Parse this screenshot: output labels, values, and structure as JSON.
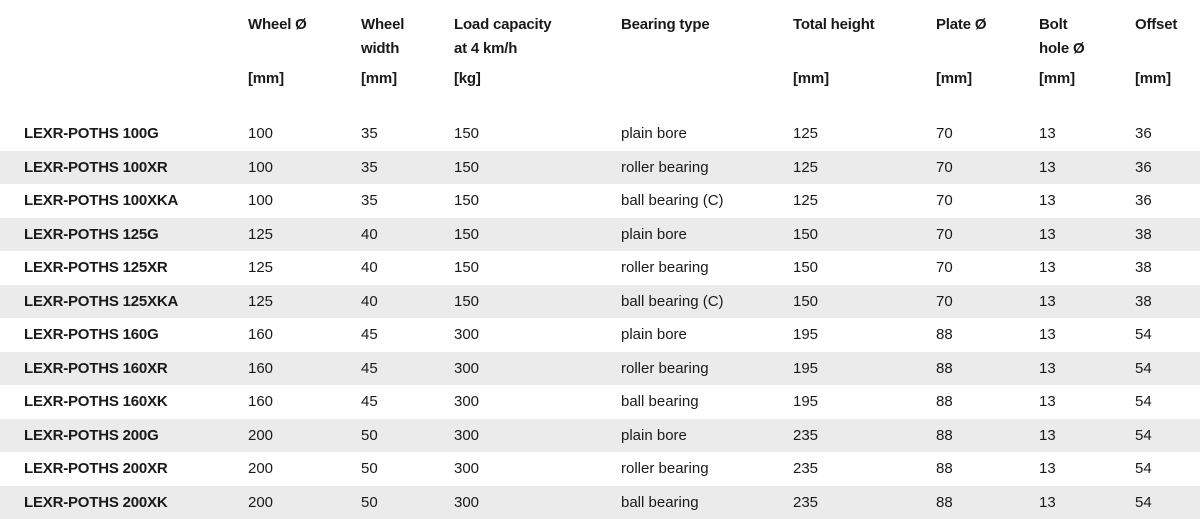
{
  "headers": {
    "wheel_diameter": {
      "line1": "Wheel Ø",
      "line2": "",
      "unit": "[mm]"
    },
    "wheel_width": {
      "line1": "Wheel",
      "line2": "width",
      "unit": "[mm]"
    },
    "load_capacity": {
      "line1": "Load capacity",
      "line2": "at 4 km/h",
      "unit": "[kg]"
    },
    "bearing_type": {
      "line1": "Bearing type",
      "line2": "",
      "unit": ""
    },
    "total_height": {
      "line1": "Total height",
      "line2": "",
      "unit": "[mm]"
    },
    "plate_diameter": {
      "line1": "Plate Ø",
      "line2": "",
      "unit": "[mm]"
    },
    "bolt_hole": {
      "line1": "Bolt",
      "line2": "hole Ø",
      "unit": "[mm]"
    },
    "offset": {
      "line1": "Offset",
      "line2": "",
      "unit": "[mm]"
    }
  },
  "rows": [
    {
      "model": "LEXR-POTHS 100G",
      "wheel_diameter": "100",
      "wheel_width": "35",
      "load_capacity": "150",
      "bearing_type": "plain bore",
      "total_height": "125",
      "plate_diameter": "70",
      "bolt_hole": "13",
      "offset": "36"
    },
    {
      "model": "LEXR-POTHS 100XR",
      "wheel_diameter": "100",
      "wheel_width": "35",
      "load_capacity": "150",
      "bearing_type": "roller bearing",
      "total_height": "125",
      "plate_diameter": "70",
      "bolt_hole": "13",
      "offset": "36"
    },
    {
      "model": "LEXR-POTHS 100XKA",
      "wheel_diameter": "100",
      "wheel_width": "35",
      "load_capacity": "150",
      "bearing_type": "ball bearing (C)",
      "total_height": "125",
      "plate_diameter": "70",
      "bolt_hole": "13",
      "offset": "36"
    },
    {
      "model": "LEXR-POTHS 125G",
      "wheel_diameter": "125",
      "wheel_width": "40",
      "load_capacity": "150",
      "bearing_type": "plain bore",
      "total_height": "150",
      "plate_diameter": "70",
      "bolt_hole": "13",
      "offset": "38"
    },
    {
      "model": "LEXR-POTHS 125XR",
      "wheel_diameter": "125",
      "wheel_width": "40",
      "load_capacity": "150",
      "bearing_type": "roller bearing",
      "total_height": "150",
      "plate_diameter": "70",
      "bolt_hole": "13",
      "offset": "38"
    },
    {
      "model": "LEXR-POTHS 125XKA",
      "wheel_diameter": "125",
      "wheel_width": "40",
      "load_capacity": "150",
      "bearing_type": "ball bearing (C)",
      "total_height": "150",
      "plate_diameter": "70",
      "bolt_hole": "13",
      "offset": "38"
    },
    {
      "model": "LEXR-POTHS 160G",
      "wheel_diameter": "160",
      "wheel_width": "45",
      "load_capacity": "300",
      "bearing_type": "plain bore",
      "total_height": "195",
      "plate_diameter": "88",
      "bolt_hole": "13",
      "offset": "54"
    },
    {
      "model": "LEXR-POTHS 160XR",
      "wheel_diameter": "160",
      "wheel_width": "45",
      "load_capacity": "300",
      "bearing_type": "roller bearing",
      "total_height": "195",
      "plate_diameter": "88",
      "bolt_hole": "13",
      "offset": "54"
    },
    {
      "model": "LEXR-POTHS 160XK",
      "wheel_diameter": "160",
      "wheel_width": "45",
      "load_capacity": "300",
      "bearing_type": "ball bearing",
      "total_height": "195",
      "plate_diameter": "88",
      "bolt_hole": "13",
      "offset": "54"
    },
    {
      "model": "LEXR-POTHS 200G",
      "wheel_diameter": "200",
      "wheel_width": "50",
      "load_capacity": "300",
      "bearing_type": "plain bore",
      "total_height": "235",
      "plate_diameter": "88",
      "bolt_hole": "13",
      "offset": "54"
    },
    {
      "model": "LEXR-POTHS 200XR",
      "wheel_diameter": "200",
      "wheel_width": "50",
      "load_capacity": "300",
      "bearing_type": "roller bearing",
      "total_height": "235",
      "plate_diameter": "88",
      "bolt_hole": "13",
      "offset": "54"
    },
    {
      "model": "LEXR-POTHS 200XK",
      "wheel_diameter": "200",
      "wheel_width": "50",
      "load_capacity": "300",
      "bearing_type": "ball bearing",
      "total_height": "235",
      "plate_diameter": "88",
      "bolt_hole": "13",
      "offset": "54"
    }
  ],
  "colors": {
    "stripe": "#ebebeb",
    "text": "#1a1a1a",
    "background": "#ffffff"
  }
}
